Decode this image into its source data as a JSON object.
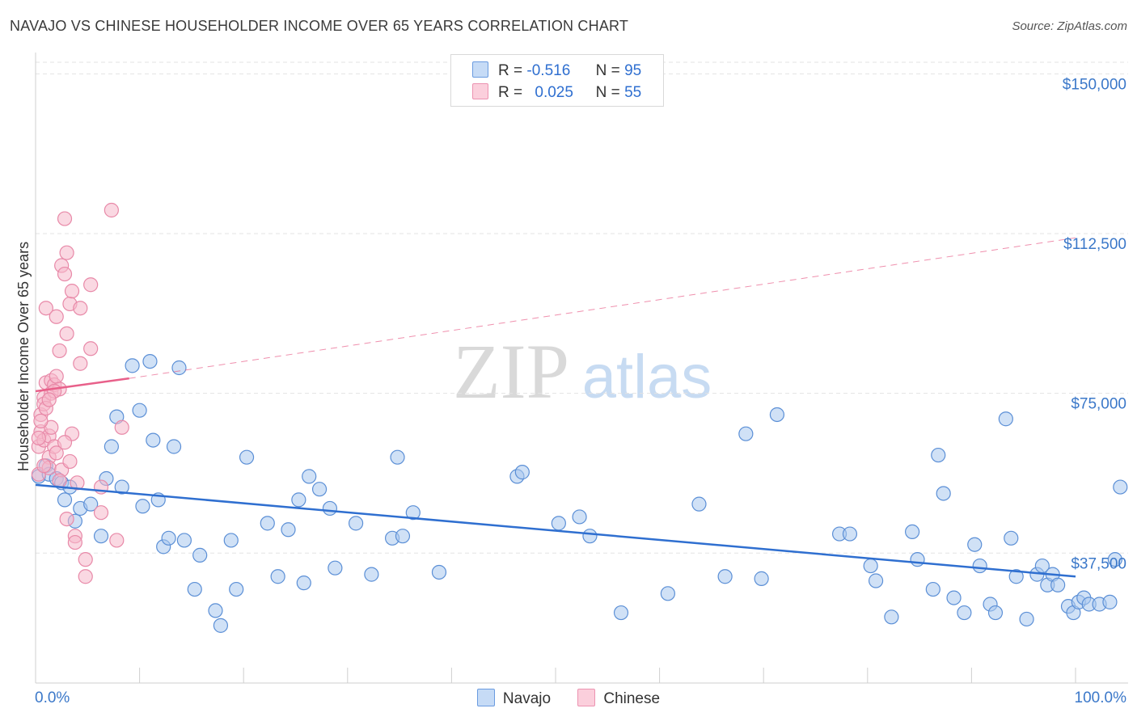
{
  "header": {
    "title": "NAVAJO VS CHINESE HOUSEHOLDER INCOME OVER 65 YEARS CORRELATION CHART",
    "source": "Source: ZipAtlas.com"
  },
  "legend": {
    "rows": [
      {
        "r_label": "R =",
        "r_value": "-0.516",
        "n_label": "N =",
        "n_value": "95"
      },
      {
        "r_label": "R =",
        "r_value": "0.025",
        "n_label": "N =",
        "n_value": "55"
      }
    ]
  },
  "colors": {
    "navajo_fill": "#aac8ef",
    "navajo_stroke": "#5b8fd6",
    "navajo_line": "#2f6fd0",
    "chinese_fill": "#f6b8cb",
    "chinese_stroke": "#e889a8",
    "chinese_line": "#e8608a",
    "tick_text": "#3b78c9",
    "grid": "#e3e3e3"
  },
  "watermark": {
    "zip": "ZIP",
    "atlas": "atlas"
  },
  "chart_data": {
    "type": "scatter",
    "title": "NAVAJO VS CHINESE HOUSEHOLDER INCOME OVER 65 YEARS CORRELATION CHART",
    "xlabel": "",
    "ylabel": "Householder Income Over 65 years",
    "xlim": [
      0,
      100
    ],
    "ylim": [
      7000,
      155000
    ],
    "x_tick_labels": [
      "0.0%",
      "100.0%"
    ],
    "y_ticks": [
      37500,
      75000,
      112500,
      150000
    ],
    "y_tick_labels": [
      "$37,500",
      "$75,000",
      "$112,500",
      "$150,000"
    ],
    "grid": true,
    "legend_position": "top-center",
    "series": [
      {
        "name": "Navajo",
        "trend": {
          "x": [
            0,
            100
          ],
          "y": [
            53500,
            32000
          ],
          "dashed_extension": false
        },
        "points": [
          [
            0.3,
            55500
          ],
          [
            1.0,
            58000
          ],
          [
            1.3,
            56000
          ],
          [
            2.0,
            55000
          ],
          [
            2.5,
            54000
          ],
          [
            3.3,
            53000
          ],
          [
            2.8,
            50000
          ],
          [
            3.8,
            45000
          ],
          [
            4.3,
            48000
          ],
          [
            5.3,
            49000
          ],
          [
            6.3,
            41500
          ],
          [
            6.8,
            55000
          ],
          [
            7.3,
            62500
          ],
          [
            7.8,
            69500
          ],
          [
            8.3,
            53000
          ],
          [
            9.3,
            81500
          ],
          [
            10.0,
            71000
          ],
          [
            10.3,
            48500
          ],
          [
            11.3,
            64000
          ],
          [
            11.8,
            50000
          ],
          [
            11.0,
            82500
          ],
          [
            12.3,
            39000
          ],
          [
            12.8,
            41000
          ],
          [
            13.3,
            62500
          ],
          [
            13.8,
            81000
          ],
          [
            14.3,
            40500
          ],
          [
            15.3,
            29000
          ],
          [
            15.8,
            37000
          ],
          [
            17.3,
            24000
          ],
          [
            17.8,
            20500
          ],
          [
            18.8,
            40500
          ],
          [
            19.3,
            29000
          ],
          [
            20.3,
            60000
          ],
          [
            22.3,
            44500
          ],
          [
            23.3,
            32000
          ],
          [
            24.3,
            43000
          ],
          [
            25.3,
            50000
          ],
          [
            25.8,
            30500
          ],
          [
            26.3,
            55500
          ],
          [
            27.3,
            52500
          ],
          [
            28.3,
            48000
          ],
          [
            28.8,
            34000
          ],
          [
            30.8,
            44500
          ],
          [
            32.3,
            32500
          ],
          [
            34.3,
            41000
          ],
          [
            34.8,
            60000
          ],
          [
            35.3,
            41500
          ],
          [
            36.3,
            47000
          ],
          [
            38.8,
            33000
          ],
          [
            46.3,
            55500
          ],
          [
            46.8,
            56500
          ],
          [
            50.3,
            44500
          ],
          [
            52.3,
            46000
          ],
          [
            53.3,
            41500
          ],
          [
            56.3,
            23500
          ],
          [
            60.8,
            28000
          ],
          [
            63.8,
            49000
          ],
          [
            66.3,
            32000
          ],
          [
            68.3,
            65500
          ],
          [
            69.8,
            31500
          ],
          [
            71.3,
            70000
          ],
          [
            77.3,
            42000
          ],
          [
            78.3,
            42000
          ],
          [
            80.3,
            34500
          ],
          [
            80.8,
            31000
          ],
          [
            82.3,
            22500
          ],
          [
            84.3,
            42500
          ],
          [
            84.8,
            36000
          ],
          [
            86.3,
            29000
          ],
          [
            86.8,
            60500
          ],
          [
            87.3,
            51500
          ],
          [
            88.3,
            27000
          ],
          [
            89.3,
            23500
          ],
          [
            90.3,
            39500
          ],
          [
            90.8,
            34500
          ],
          [
            91.8,
            25500
          ],
          [
            92.3,
            23500
          ],
          [
            93.3,
            69000
          ],
          [
            93.8,
            41000
          ],
          [
            94.3,
            32000
          ],
          [
            95.3,
            22000
          ],
          [
            96.3,
            32500
          ],
          [
            96.8,
            34500
          ],
          [
            97.3,
            30000
          ],
          [
            97.8,
            32500
          ],
          [
            98.3,
            30000
          ],
          [
            99.3,
            25000
          ],
          [
            99.8,
            23500
          ],
          [
            100.3,
            26000
          ],
          [
            100.8,
            27000
          ],
          [
            101.3,
            25500
          ],
          [
            102.3,
            25500
          ],
          [
            103.3,
            26000
          ],
          [
            103.8,
            36000
          ],
          [
            104.3,
            53000
          ]
        ]
      },
      {
        "name": "Chinese",
        "trend": {
          "x": [
            0,
            9
          ],
          "y": [
            75500,
            78500
          ],
          "dashed_extension": true,
          "extension_to": [
            100,
            111500
          ]
        },
        "points": [
          [
            0.3,
            62500
          ],
          [
            0.3,
            56000
          ],
          [
            0.5,
            66000
          ],
          [
            0.5,
            70000
          ],
          [
            0.8,
            74000
          ],
          [
            0.8,
            72500
          ],
          [
            0.8,
            64000
          ],
          [
            1.0,
            77500
          ],
          [
            1.0,
            95000
          ],
          [
            1.3,
            60000
          ],
          [
            1.3,
            65000
          ],
          [
            1.3,
            57500
          ],
          [
            1.5,
            78000
          ],
          [
            1.5,
            75000
          ],
          [
            1.8,
            77000
          ],
          [
            1.8,
            62500
          ],
          [
            2.0,
            93000
          ],
          [
            2.0,
            79000
          ],
          [
            2.3,
            85000
          ],
          [
            2.3,
            76000
          ],
          [
            2.5,
            105000
          ],
          [
            2.5,
            57000
          ],
          [
            2.8,
            116000
          ],
          [
            2.8,
            103000
          ],
          [
            3.0,
            89000
          ],
          [
            3.0,
            108000
          ],
          [
            3.3,
            96000
          ],
          [
            3.5,
            99000
          ],
          [
            3.5,
            65500
          ],
          [
            3.8,
            41500
          ],
          [
            3.8,
            40000
          ],
          [
            4.0,
            54000
          ],
          [
            4.3,
            82000
          ],
          [
            4.3,
            95000
          ],
          [
            4.8,
            36000
          ],
          [
            4.8,
            32000
          ],
          [
            5.3,
            85500
          ],
          [
            5.3,
            100500
          ],
          [
            6.3,
            47000
          ],
          [
            6.3,
            53000
          ],
          [
            7.3,
            118000
          ],
          [
            7.8,
            40500
          ],
          [
            8.3,
            67000
          ],
          [
            0.3,
            64500
          ],
          [
            0.8,
            58000
          ],
          [
            1.8,
            75500
          ],
          [
            2.3,
            54500
          ],
          [
            3.0,
            45500
          ],
          [
            1.0,
            71500
          ],
          [
            1.5,
            67000
          ],
          [
            2.0,
            61000
          ],
          [
            0.5,
            68500
          ],
          [
            1.3,
            73500
          ],
          [
            2.8,
            63500
          ],
          [
            3.3,
            59000
          ]
        ]
      }
    ]
  }
}
